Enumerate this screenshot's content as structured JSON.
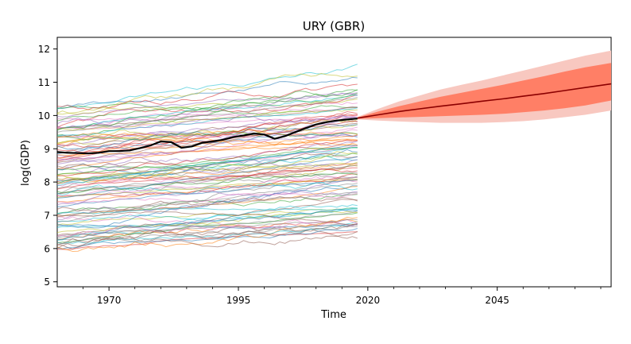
{
  "chart_data": {
    "type": "line",
    "title": "URY (GBR)",
    "xlabel": "Time",
    "ylabel": "log(GDP)",
    "xlim": [
      1960,
      2067
    ],
    "ylim": [
      4.85,
      12.35
    ],
    "x_ticks": [
      1970,
      1995,
      2020,
      2045
    ],
    "y_ticks": [
      5,
      6,
      7,
      8,
      9,
      10,
      11,
      12
    ],
    "grid": false,
    "legend": "none",
    "background_series": {
      "description": "many other countries' log(GDP) histories, 1960-2018",
      "x_range": [
        1960,
        2018
      ],
      "start_range": [
        5.9,
        10.3
      ],
      "end_range": [
        6.5,
        11.3
      ],
      "count": 110
    },
    "series": [
      {
        "role": "history",
        "color": "#000000",
        "x": [
          1960,
          1962,
          1964,
          1966,
          1968,
          1970,
          1972,
          1974,
          1976,
          1978,
          1980,
          1982,
          1984,
          1986,
          1988,
          1990,
          1992,
          1994,
          1996,
          1998,
          2000,
          2002,
          2004,
          2006,
          2008,
          2010,
          2012,
          2014,
          2016,
          2018
        ],
        "values": [
          8.9,
          8.88,
          8.87,
          8.86,
          8.88,
          8.93,
          8.93,
          8.95,
          9.02,
          9.1,
          9.22,
          9.2,
          9.03,
          9.07,
          9.18,
          9.22,
          9.27,
          9.35,
          9.4,
          9.46,
          9.43,
          9.3,
          9.38,
          9.5,
          9.62,
          9.73,
          9.8,
          9.85,
          9.88,
          9.91
        ]
      },
      {
        "role": "forecast-median",
        "color": "#8b0000",
        "x": [
          2018,
          2022,
          2026,
          2030,
          2034,
          2038,
          2042,
          2046,
          2050,
          2054,
          2058,
          2062,
          2067
        ],
        "values": [
          9.92,
          10.02,
          10.12,
          10.2,
          10.28,
          10.35,
          10.43,
          10.5,
          10.58,
          10.66,
          10.75,
          10.84,
          10.95
        ]
      }
    ],
    "bands": [
      {
        "role": "forecast-outer",
        "color": "#f8c8c0",
        "x": [
          2018,
          2022,
          2026,
          2030,
          2034,
          2038,
          2042,
          2046,
          2050,
          2054,
          2058,
          2062,
          2067
        ],
        "lower": [
          9.88,
          9.85,
          9.82,
          9.8,
          9.78,
          9.78,
          9.78,
          9.8,
          9.83,
          9.88,
          9.95,
          10.02,
          10.15
        ],
        "upper": [
          9.96,
          10.2,
          10.42,
          10.6,
          10.78,
          10.92,
          11.05,
          11.2,
          11.35,
          11.5,
          11.65,
          11.8,
          11.95
        ]
      },
      {
        "role": "forecast-inner",
        "color": "#ff7f66",
        "x": [
          2018,
          2022,
          2026,
          2030,
          2034,
          2038,
          2042,
          2046,
          2050,
          2054,
          2058,
          2062,
          2067
        ],
        "lower": [
          9.9,
          9.92,
          9.94,
          9.96,
          9.98,
          10.0,
          10.02,
          10.05,
          10.1,
          10.15,
          10.22,
          10.3,
          10.45
        ],
        "upper": [
          9.94,
          10.12,
          10.28,
          10.42,
          10.56,
          10.68,
          10.8,
          10.92,
          11.05,
          11.18,
          11.32,
          11.45,
          11.58
        ]
      }
    ]
  }
}
